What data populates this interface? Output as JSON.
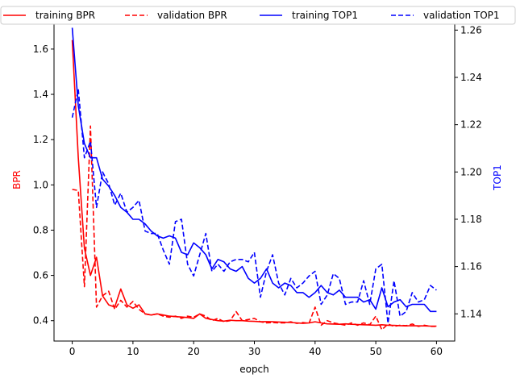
{
  "chart_data": {
    "type": "line",
    "title": "",
    "xlabel": "eopch",
    "ylabel_left": "BPR",
    "ylabel_right": "TOP1",
    "xlim": [
      -3,
      63
    ],
    "ylim_left": [
      0.31,
      1.71
    ],
    "ylim_right": [
      1.1285,
      1.2625
    ],
    "xticks": [
      0,
      10,
      20,
      30,
      40,
      50,
      60
    ],
    "yticks_left": [
      0.4,
      0.6,
      0.8,
      1.0,
      1.2,
      1.4,
      1.6
    ],
    "yticks_right": [
      1.14,
      1.16,
      1.18,
      1.2,
      1.22,
      1.24,
      1.26
    ],
    "legend_position": "top",
    "grid": false,
    "colors": {
      "bpr_axis": "#ff0000",
      "top1_axis": "#0000ff"
    },
    "x": [
      0,
      1,
      2,
      3,
      4,
      5,
      6,
      7,
      8,
      9,
      10,
      11,
      12,
      13,
      14,
      15,
      16,
      17,
      18,
      19,
      20,
      21,
      22,
      23,
      24,
      25,
      26,
      27,
      28,
      29,
      30,
      31,
      32,
      33,
      34,
      35,
      36,
      37,
      38,
      39,
      40,
      41,
      42,
      43,
      44,
      45,
      46,
      47,
      48,
      49,
      50,
      51,
      52,
      53,
      54,
      55,
      56,
      57,
      58,
      59,
      60
    ],
    "series": [
      {
        "name": "training BPR",
        "axis": "left",
        "color": "#ff0000",
        "dash": "solid",
        "values": [
          1.64,
          1.12,
          0.72,
          0.6,
          0.68,
          0.51,
          0.47,
          0.46,
          0.54,
          0.47,
          0.455,
          0.47,
          0.43,
          0.425,
          0.43,
          0.425,
          0.42,
          0.418,
          0.416,
          0.414,
          0.41,
          0.43,
          0.41,
          0.405,
          0.4,
          0.398,
          0.402,
          0.4,
          0.4,
          0.398,
          0.397,
          0.395,
          0.396,
          0.395,
          0.394,
          0.393,
          0.392,
          0.39,
          0.388,
          0.39,
          0.395,
          0.39,
          0.386,
          0.385,
          0.384,
          0.386,
          0.384,
          0.383,
          0.382,
          0.381,
          0.38,
          0.382,
          0.38,
          0.379,
          0.378,
          0.377,
          0.378,
          0.377,
          0.377,
          0.376,
          0.376
        ]
      },
      {
        "name": "validation BPR",
        "axis": "left",
        "color": "#ff0000",
        "dash": "dashed",
        "values": [
          0.98,
          0.975,
          0.55,
          1.26,
          0.46,
          0.51,
          0.53,
          0.45,
          0.49,
          0.46,
          0.485,
          0.45,
          0.43,
          0.425,
          0.43,
          0.42,
          0.415,
          0.42,
          0.41,
          0.42,
          0.415,
          0.43,
          0.42,
          0.4,
          0.41,
          0.395,
          0.4,
          0.44,
          0.4,
          0.405,
          0.41,
          0.395,
          0.39,
          0.392,
          0.39,
          0.39,
          0.395,
          0.388,
          0.392,
          0.388,
          0.46,
          0.38,
          0.4,
          0.39,
          0.385,
          0.38,
          0.39,
          0.38,
          0.39,
          0.382,
          0.42,
          0.36,
          0.385,
          0.375,
          0.38,
          0.378,
          0.385,
          0.375,
          0.38,
          0.375,
          0.375
        ]
      },
      {
        "name": "training TOP1",
        "axis": "right",
        "color": "#0000ff",
        "dash": "solid",
        "values": [
          1.261,
          1.228,
          1.212,
          1.206,
          1.206,
          1.197,
          1.194,
          1.19,
          1.185,
          1.183,
          1.18,
          1.18,
          1.178,
          1.175,
          1.173,
          1.172,
          1.173,
          1.172,
          1.166,
          1.165,
          1.17,
          1.168,
          1.165,
          1.159,
          1.163,
          1.162,
          1.159,
          1.158,
          1.16,
          1.155,
          1.153,
          1.155,
          1.159,
          1.153,
          1.151,
          1.153,
          1.152,
          1.149,
          1.149,
          1.147,
          1.149,
          1.152,
          1.149,
          1.148,
          1.15,
          1.147,
          1.147,
          1.147,
          1.145,
          1.146,
          1.142,
          1.151,
          1.143,
          1.145,
          1.146,
          1.143,
          1.144,
          1.144,
          1.144,
          1.141,
          1.141
        ]
      },
      {
        "name": "validation TOP1",
        "axis": "right",
        "color": "#0000ff",
        "dash": "dashed",
        "values": [
          1.223,
          1.235,
          1.206,
          1.213,
          1.185,
          1.2,
          1.195,
          1.186,
          1.191,
          1.183,
          1.185,
          1.188,
          1.175,
          1.174,
          1.174,
          1.167,
          1.161,
          1.179,
          1.18,
          1.161,
          1.156,
          1.165,
          1.174,
          1.158,
          1.161,
          1.158,
          1.162,
          1.163,
          1.163,
          1.162,
          1.166,
          1.147,
          1.158,
          1.165,
          1.153,
          1.148,
          1.155,
          1.151,
          1.153,
          1.156,
          1.158,
          1.144,
          1.148,
          1.157,
          1.155,
          1.144,
          1.145,
          1.145,
          1.154,
          1.144,
          1.159,
          1.161,
          1.136,
          1.154,
          1.139,
          1.141,
          1.149,
          1.145,
          1.146,
          1.152,
          1.15
        ]
      }
    ]
  }
}
